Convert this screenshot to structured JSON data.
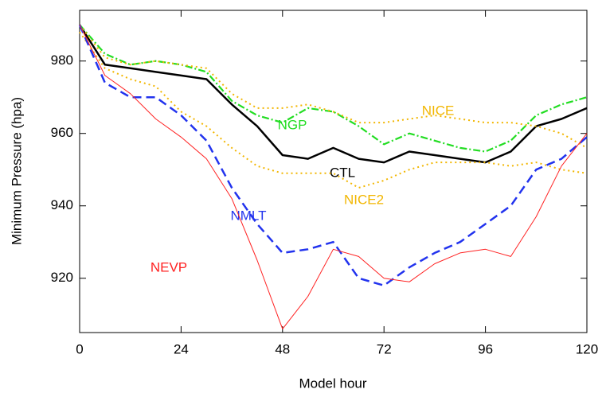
{
  "chart_data": {
    "type": "line",
    "x_label": "Model hour",
    "y_label": "Minimum Pressure (hpa)",
    "x": [
      0,
      6,
      12,
      18,
      24,
      30,
      36,
      42,
      48,
      54,
      60,
      66,
      72,
      78,
      84,
      90,
      96,
      102,
      108,
      114,
      120
    ],
    "xlim": [
      0,
      120
    ],
    "xticks": [
      0,
      24,
      48,
      72,
      96,
      120
    ],
    "ylim": [
      905,
      994
    ],
    "yticks": [
      920,
      940,
      960,
      980
    ],
    "grid": false,
    "series": [
      {
        "name": "CTL",
        "color": "#000000",
        "values": [
          990,
          979,
          978,
          977,
          976,
          975,
          968,
          962,
          954,
          953,
          956,
          953,
          952,
          955,
          954,
          953,
          952,
          955,
          962,
          964,
          967
        ]
      },
      {
        "name": "NGP",
        "color": "#22dd22",
        "values": [
          990,
          982,
          979,
          980,
          979,
          977,
          969,
          965,
          963,
          967,
          966,
          962,
          957,
          960,
          958,
          956,
          955,
          958,
          965,
          968,
          970
        ]
      },
      {
        "name": "NICE",
        "color": "#f2b600",
        "values": [
          990,
          981,
          979,
          980,
          979,
          978,
          971,
          967,
          967,
          968,
          966,
          963,
          963,
          964,
          965,
          964,
          963,
          963,
          962,
          960,
          956
        ]
      },
      {
        "name": "NICE2",
        "color": "#f2b600",
        "values": [
          988,
          978,
          975,
          973,
          966,
          962,
          956,
          951,
          949,
          949,
          949,
          945,
          947,
          950,
          952,
          952,
          952,
          951,
          952,
          950,
          949
        ]
      },
      {
        "name": "NMLT",
        "color": "#2233ee",
        "values": [
          990,
          974,
          970,
          970,
          965,
          958,
          945,
          935,
          927,
          928,
          930,
          920,
          918,
          923,
          927,
          930,
          935,
          940,
          950,
          953,
          959
        ]
      },
      {
        "name": "NEVP",
        "color": "#ff2222",
        "values": [
          990,
          976,
          971,
          964,
          959,
          953,
          942,
          925,
          906,
          915,
          928,
          926,
          920,
          919,
          924,
          927,
          928,
          926,
          937,
          951,
          960
        ]
      }
    ]
  }
}
